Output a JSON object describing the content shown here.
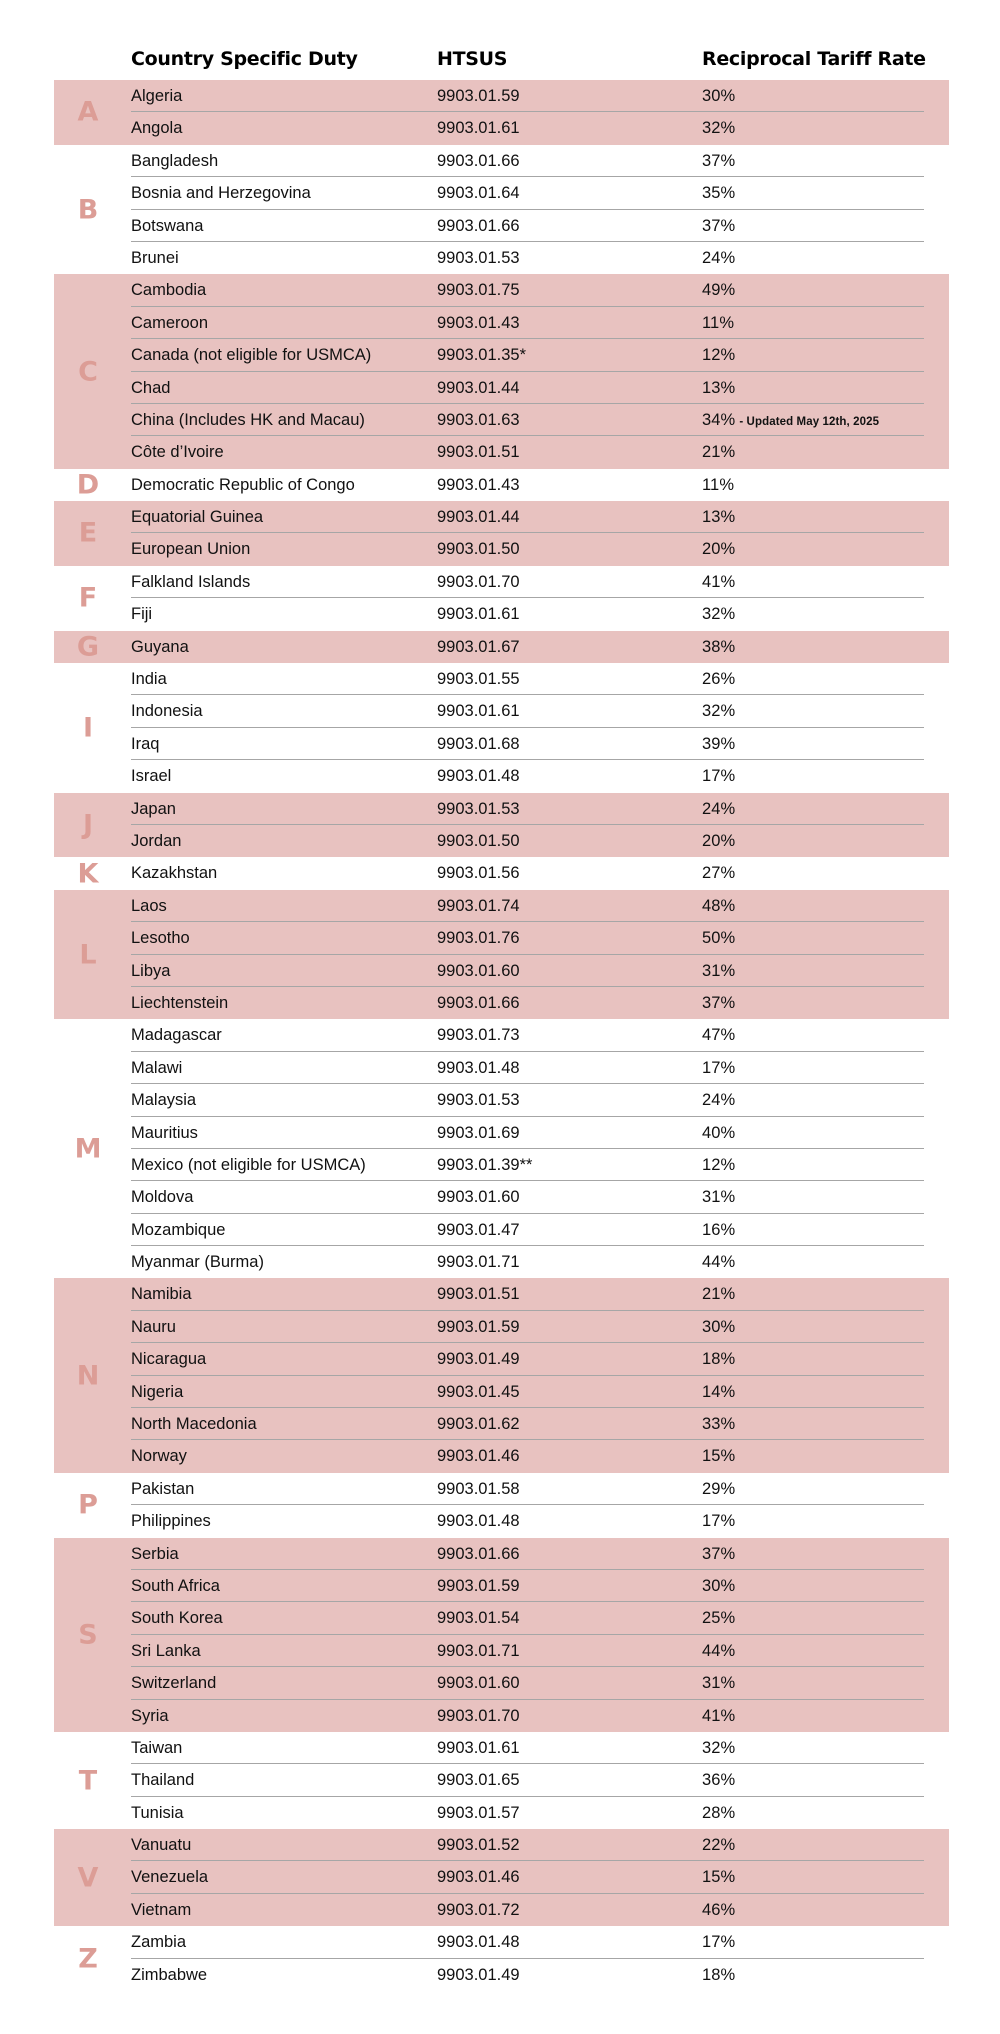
{
  "headers": {
    "country": "Country Specific Duty",
    "htsus": "HTSUS",
    "rate": "Reciprocal Tariff Rate"
  },
  "colors": {
    "band": "#e8c2c0",
    "letter": "#dc9d96",
    "separator": "#a6a6a6"
  },
  "groups": [
    {
      "letter": "A",
      "rows": [
        [
          "Algeria",
          "9903.01.59",
          "30%"
        ],
        [
          "Angola",
          "9903.01.61",
          "32%"
        ]
      ]
    },
    {
      "letter": "B",
      "rows": [
        [
          "Bangladesh",
          "9903.01.66",
          "37%"
        ],
        [
          "Bosnia and Herzegovina",
          "9903.01.64",
          "35%"
        ],
        [
          "Botswana",
          "9903.01.66",
          "37%"
        ],
        [
          "Brunei",
          "9903.01.53",
          "24%"
        ]
      ]
    },
    {
      "letter": "C",
      "rows": [
        [
          "Cambodia",
          "9903.01.75",
          "49%"
        ],
        [
          "Cameroon",
          "9903.01.43",
          "11%"
        ],
        [
          "Canada (not eligible for USMCA)",
          "9903.01.35*",
          "12%"
        ],
        [
          "Chad",
          "9903.01.44",
          "13%"
        ],
        [
          "China (Includes HK and Macau)",
          "9903.01.63",
          "34%",
          "- Updated May 12th, 2025"
        ],
        [
          "Côte d’Ivoire",
          "9903.01.51",
          "21%"
        ]
      ]
    },
    {
      "letter": "D",
      "rows": [
        [
          "Democratic Republic of Congo",
          "9903.01.43",
          "11%"
        ]
      ]
    },
    {
      "letter": "E",
      "rows": [
        [
          "Equatorial Guinea",
          "9903.01.44",
          "13%"
        ],
        [
          "European Union",
          "9903.01.50",
          "20%"
        ]
      ]
    },
    {
      "letter": "F",
      "rows": [
        [
          "Falkland Islands",
          "9903.01.70",
          "41%"
        ],
        [
          "Fiji",
          "9903.01.61",
          "32%"
        ]
      ]
    },
    {
      "letter": "G",
      "rows": [
        [
          "Guyana",
          "9903.01.67",
          "38%"
        ]
      ]
    },
    {
      "letter": "I",
      "rows": [
        [
          "India",
          "9903.01.55",
          "26%"
        ],
        [
          "Indonesia",
          "9903.01.61",
          "32%"
        ],
        [
          "Iraq",
          "9903.01.68",
          "39%"
        ],
        [
          "Israel",
          "9903.01.48",
          "17%"
        ]
      ]
    },
    {
      "letter": "J",
      "rows": [
        [
          "Japan",
          "9903.01.53",
          "24%"
        ],
        [
          "Jordan",
          "9903.01.50",
          "20%"
        ]
      ]
    },
    {
      "letter": "K",
      "rows": [
        [
          "Kazakhstan",
          "9903.01.56",
          "27%"
        ]
      ]
    },
    {
      "letter": "L",
      "rows": [
        [
          "Laos",
          "9903.01.74",
          "48%"
        ],
        [
          "Lesotho",
          "9903.01.76",
          "50%"
        ],
        [
          "Libya",
          "9903.01.60",
          "31%"
        ],
        [
          "Liechtenstein",
          "9903.01.66",
          "37%"
        ]
      ]
    },
    {
      "letter": "M",
      "rows": [
        [
          "Madagascar",
          "9903.01.73",
          "47%"
        ],
        [
          "Malawi",
          "9903.01.48",
          "17%"
        ],
        [
          "Malaysia",
          "9903.01.53",
          "24%"
        ],
        [
          "Mauritius",
          "9903.01.69",
          "40%"
        ],
        [
          "Mexico (not eligible for USMCA)",
          "9903.01.39**",
          "12%"
        ],
        [
          "Moldova",
          "9903.01.60",
          "31%"
        ],
        [
          "Mozambique",
          "9903.01.47",
          "16%"
        ],
        [
          "Myanmar (Burma)",
          "9903.01.71",
          "44%"
        ]
      ]
    },
    {
      "letter": "N",
      "rows": [
        [
          "Namibia",
          "9903.01.51",
          "21%"
        ],
        [
          "Nauru",
          "9903.01.59",
          "30%"
        ],
        [
          "Nicaragua",
          "9903.01.49",
          "18%"
        ],
        [
          "Nigeria",
          "9903.01.45",
          "14%"
        ],
        [
          "North Macedonia",
          "9903.01.62",
          "33%"
        ],
        [
          "Norway",
          "9903.01.46",
          "15%"
        ]
      ]
    },
    {
      "letter": "P",
      "rows": [
        [
          "Pakistan",
          "9903.01.58",
          "29%"
        ],
        [
          "Philippines",
          "9903.01.48",
          "17%"
        ]
      ]
    },
    {
      "letter": "S",
      "rows": [
        [
          "Serbia",
          "9903.01.66",
          "37%"
        ],
        [
          "South Africa",
          "9903.01.59",
          "30%"
        ],
        [
          "South Korea",
          "9903.01.54",
          "25%"
        ],
        [
          "Sri Lanka",
          "9903.01.71",
          "44%"
        ],
        [
          "Switzerland",
          "9903.01.60",
          "31%"
        ],
        [
          "Syria",
          "9903.01.70",
          "41%"
        ]
      ]
    },
    {
      "letter": "T",
      "rows": [
        [
          "Taiwan",
          "9903.01.61",
          "32%"
        ],
        [
          "Thailand",
          "9903.01.65",
          "36%"
        ],
        [
          "Tunisia",
          "9903.01.57",
          "28%"
        ]
      ]
    },
    {
      "letter": "V",
      "rows": [
        [
          "Vanuatu",
          "9903.01.52",
          "22%"
        ],
        [
          "Venezuela",
          "9903.01.46",
          "15%"
        ],
        [
          "Vietnam",
          "9903.01.72",
          "46%"
        ]
      ]
    },
    {
      "letter": "Z",
      "rows": [
        [
          "Zambia",
          "9903.01.48",
          "17%"
        ],
        [
          "Zimbabwe",
          "9903.01.49",
          "18%"
        ]
      ]
    }
  ]
}
